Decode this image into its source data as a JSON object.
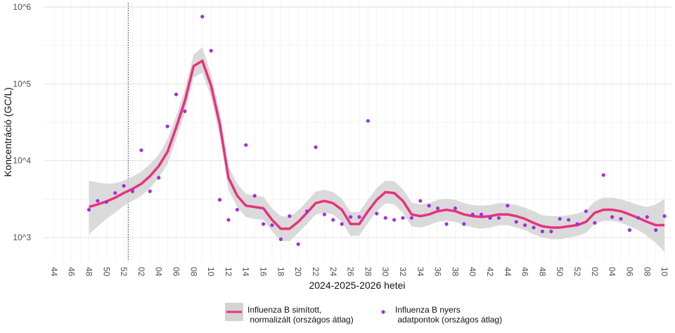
{
  "chart_data": {
    "type": "line",
    "y_label": "Koncentráció (GC/L)",
    "x_label": "2024-2025-2026 hetei",
    "log_y": true,
    "grid": true,
    "legend": "bottom",
    "vlines": [
      8.5
    ],
    "ylim": [
      490,
      1135000
    ],
    "yticks": [
      {
        "value": 1000,
        "label": "10^3"
      },
      {
        "value": 10000,
        "label": "10^4"
      },
      {
        "value": 100000,
        "label": "10^5"
      },
      {
        "value": 1000000,
        "label": "10^6"
      }
    ],
    "categories": [
      "44",
      null,
      "46",
      null,
      "48",
      null,
      "50",
      null,
      "52",
      null,
      "02",
      null,
      "04",
      null,
      "06",
      null,
      "08",
      null,
      "10",
      null,
      "12",
      null,
      "14",
      null,
      "16",
      null,
      "18",
      null,
      "20",
      null,
      "22",
      null,
      "24",
      null,
      "26",
      null,
      "28",
      null,
      "30",
      null,
      "32",
      null,
      "34",
      null,
      "36",
      null,
      "38",
      null,
      "40",
      null,
      "42",
      null,
      "44",
      null,
      "46",
      null,
      "48",
      null,
      "50",
      null,
      "52",
      null,
      "02",
      null,
      "04",
      null,
      "06",
      null,
      "08",
      null,
      "10"
    ],
    "series": [
      {
        "name": "Influenza B simított,\n normalizált (országos átlag)",
        "type": "line",
        "color": "#e8317e",
        "band_color": "#d3d3d3",
        "values": [
          null,
          null,
          null,
          null,
          2500,
          2700,
          2950,
          3300,
          3800,
          4300,
          5000,
          6300,
          8500,
          13000,
          27000,
          60000,
          170000,
          200000,
          95000,
          30000,
          6000,
          3500,
          2600,
          2500,
          2400,
          1700,
          1300,
          1300,
          1600,
          2100,
          2800,
          3000,
          2800,
          2300,
          1500,
          1500,
          2200,
          3100,
          3900,
          3800,
          3000,
          2000,
          1900,
          2000,
          2200,
          2300,
          2200,
          2000,
          1900,
          1850,
          1900,
          2000,
          2000,
          1900,
          1750,
          1550,
          1400,
          1350,
          1350,
          1400,
          1450,
          1600,
          2100,
          2300,
          2300,
          2200,
          2000,
          1800,
          1600,
          1450,
          1450
        ],
        "lower": [
          null,
          null,
          null,
          null,
          1100,
          1400,
          1750,
          2100,
          2600,
          3000,
          3500,
          4400,
          6000,
          9000,
          19000,
          42000,
          120000,
          140000,
          67000,
          21000,
          4200,
          2500,
          1850,
          1750,
          1700,
          1200,
          900,
          900,
          1150,
          1500,
          2000,
          2100,
          2000,
          1600,
          1050,
          1050,
          1550,
          2200,
          2800,
          2700,
          2100,
          1400,
          1350,
          1450,
          1600,
          1650,
          1600,
          1450,
          1350,
          1300,
          1350,
          1450,
          1450,
          1350,
          1250,
          1100,
          1000,
          950,
          950,
          1000,
          1050,
          1150,
          1500,
          1650,
          1650,
          1550,
          1400,
          1250,
          1050,
          850,
          650
        ],
        "upper": [
          null,
          null,
          null,
          null,
          5500,
          5200,
          5000,
          5100,
          5500,
          6200,
          7200,
          9000,
          12000,
          19000,
          38000,
          85000,
          240000,
          300000,
          135000,
          43000,
          8500,
          5000,
          3700,
          3500,
          3400,
          2400,
          1900,
          1850,
          2250,
          2950,
          3950,
          4200,
          3900,
          3200,
          2150,
          2150,
          3100,
          4400,
          5500,
          5400,
          4250,
          2850,
          2700,
          2800,
          3100,
          3200,
          3100,
          2800,
          2650,
          2600,
          2650,
          2800,
          2800,
          2650,
          2450,
          2200,
          1950,
          1900,
          1900,
          1950,
          2050,
          2250,
          2950,
          3300,
          3300,
          3150,
          2900,
          2650,
          2500,
          2700,
          3200
        ]
      },
      {
        "name": "Influenza B nyers\n adatpontok (országos átlag)",
        "type": "scatter",
        "color": "#a030e0",
        "values": [
          null,
          null,
          null,
          null,
          2300,
          3000,
          2900,
          3800,
          4700,
          4000,
          13700,
          4000,
          6000,
          28000,
          73000,
          44000,
          null,
          750000,
          270000,
          3100,
          1700,
          2300,
          16000,
          3500,
          1500,
          1450,
          950,
          1900,
          820,
          2200,
          15000,
          2000,
          1700,
          1500,
          1850,
          1850,
          33000,
          2050,
          1800,
          1700,
          1800,
          1800,
          3000,
          2600,
          2400,
          1500,
          2400,
          1500,
          2000,
          2000,
          1800,
          1800,
          2600,
          1600,
          1450,
          1350,
          1200,
          1200,
          1750,
          1700,
          1500,
          2200,
          1550,
          6500,
          1850,
          1750,
          1250,
          1800,
          1850,
          1250,
          1900
        ]
      }
    ]
  }
}
